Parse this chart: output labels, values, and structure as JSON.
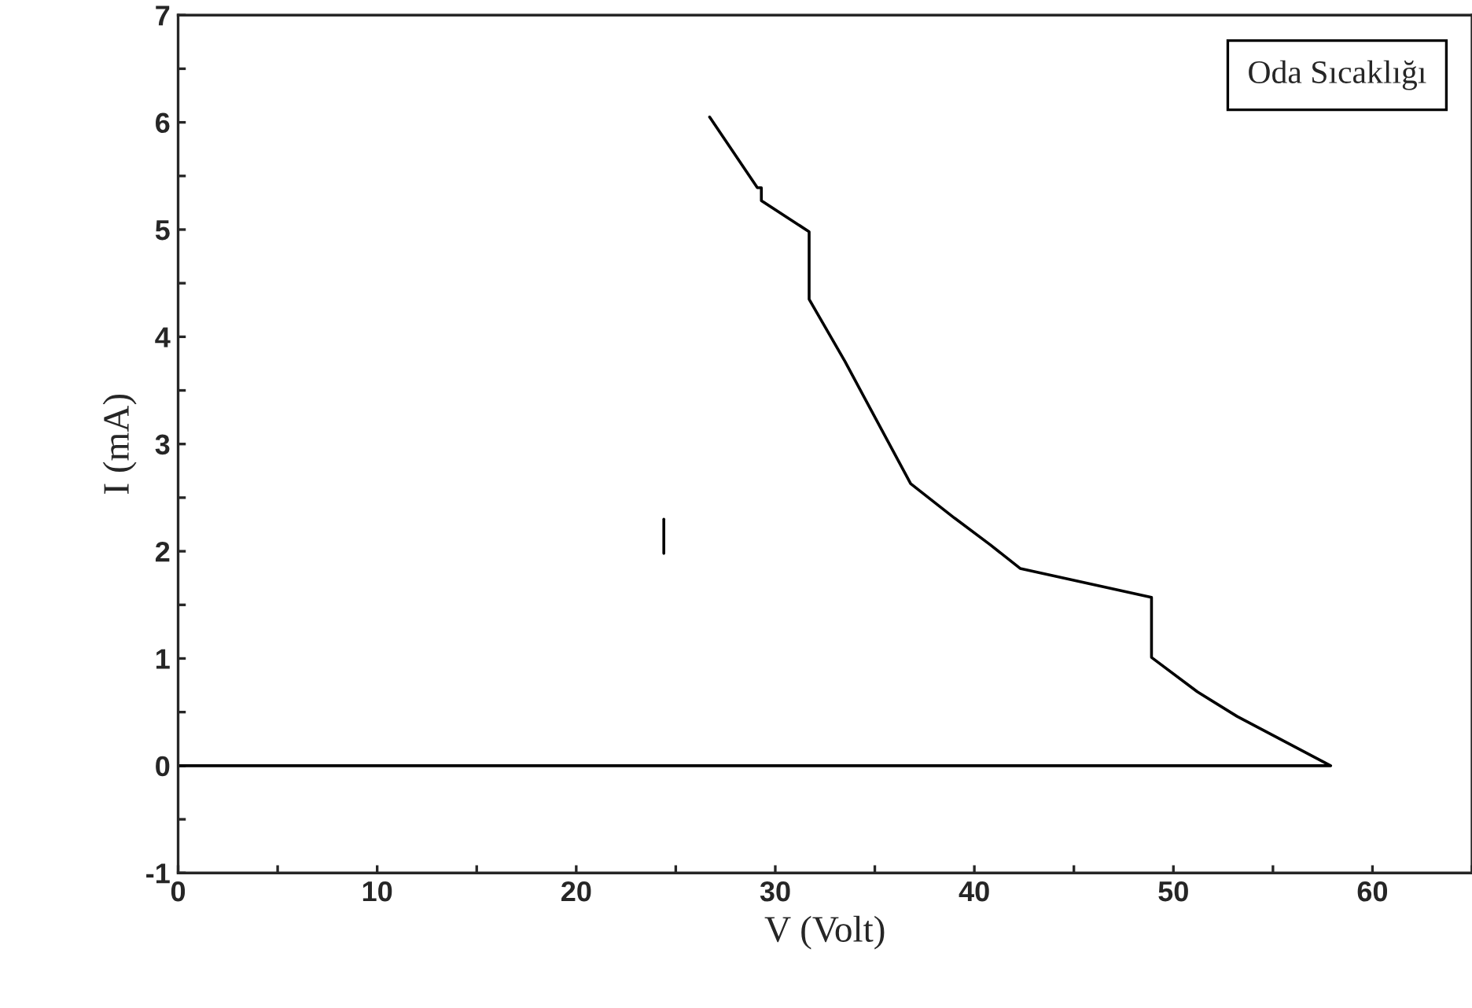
{
  "chart_data": {
    "type": "line",
    "xlabel": "V (Volt)",
    "ylabel": "I (mA)",
    "series": [
      {
        "color": "#000000",
        "x": [
          26.7,
          29.1,
          29.3,
          29.3,
          31.7,
          31.7,
          33.5,
          36.8,
          39.0,
          40.8,
          42.3,
          48.9,
          48.9,
          51.2,
          53.2,
          57.9,
          0
        ],
        "values": [
          6.05,
          5.39,
          5.39,
          5.27,
          4.98,
          4.35,
          3.77,
          2.63,
          2.31,
          2.06,
          1.84,
          1.57,
          1.01,
          0.69,
          0.46,
          0,
          0
        ]
      },
      {
        "color": "#000000",
        "x": [
          24.4,
          24.4
        ],
        "values": [
          2.3,
          1.98
        ]
      }
    ],
    "xlim": [
      0,
      65
    ],
    "xticks": [
      0,
      {
        "value": 5,
        "label": null
      },
      10,
      {
        "value": 15,
        "label": null
      },
      20,
      {
        "value": 25,
        "label": null
      },
      30,
      {
        "value": 35,
        "label": null
      },
      40,
      {
        "value": 45,
        "label": null
      },
      50,
      {
        "value": 55,
        "label": null
      },
      60,
      {
        "value": 65,
        "label": null
      }
    ],
    "ylim": [
      -1,
      7
    ],
    "yticks": [
      -1,
      {
        "value": -0.5,
        "label": null
      },
      0,
      {
        "value": 0.5,
        "label": null
      },
      1,
      {
        "value": 1.5,
        "label": null
      },
      2,
      {
        "value": 2.5,
        "label": null
      },
      3,
      {
        "value": 3.5,
        "label": null
      },
      4,
      {
        "value": 4.5,
        "label": null
      },
      5,
      {
        "value": 5.5,
        "label": null
      },
      6,
      {
        "value": 6.5,
        "label": null
      },
      7
    ],
    "annotations": [
      "Oda Sıcaklığı"
    ],
    "grid": false,
    "legend": false,
    "marker": "none",
    "line_style": "solid"
  }
}
